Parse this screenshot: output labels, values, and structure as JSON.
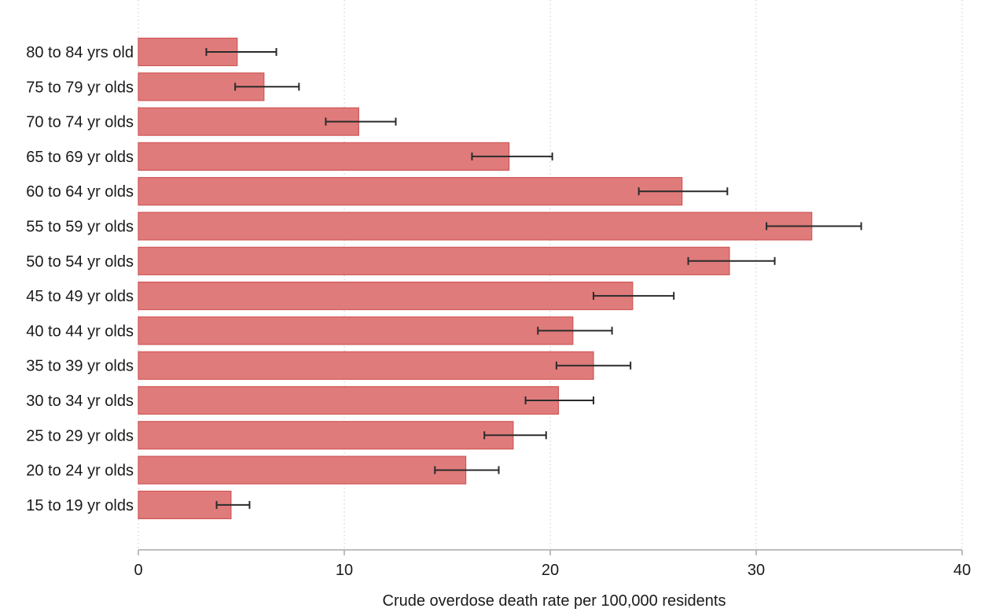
{
  "colors": {
    "bar_fill": "#e07b7b",
    "bar_stroke": "#d05656",
    "error_bar": "#2b2b2b",
    "axis": "#a8a8a8",
    "grid": "#c8c8c8",
    "text": "#1a1a1a"
  },
  "chart_data": {
    "type": "bar",
    "orientation": "horizontal",
    "title": "",
    "xlabel": "Crude overdose death rate per 100,000 residents",
    "ylabel": "",
    "xlim": [
      0,
      40
    ],
    "xticks": [
      0,
      10,
      20,
      30,
      40
    ],
    "grid": "vertical dotted",
    "legend": "none",
    "error_bars": true,
    "categories": [
      "80 to 84 yrs old",
      "75 to 79 yr olds",
      "70 to 74 yr olds",
      "65 to 69 yr olds",
      "60 to 64 yr olds",
      "55 to 59 yr olds",
      "50 to 54 yr olds",
      "45 to 49 yr olds",
      "40 to 44 yr olds",
      "35 to 39 yr olds",
      "30 to 34 yr olds",
      "25 to 29 yr olds",
      "20 to 24 yr olds",
      "15 to 19 yr olds"
    ],
    "values": [
      4.8,
      6.1,
      10.7,
      18.0,
      26.4,
      32.7,
      28.7,
      24.0,
      21.1,
      22.1,
      20.4,
      18.2,
      15.9,
      4.5
    ],
    "lower": [
      3.3,
      4.7,
      9.1,
      16.2,
      24.3,
      30.5,
      26.7,
      22.1,
      19.4,
      20.3,
      18.8,
      16.8,
      14.4,
      3.8
    ],
    "upper": [
      6.7,
      7.8,
      12.5,
      20.1,
      28.6,
      35.1,
      30.9,
      26.0,
      23.0,
      23.9,
      22.1,
      19.8,
      17.5,
      5.4
    ]
  }
}
